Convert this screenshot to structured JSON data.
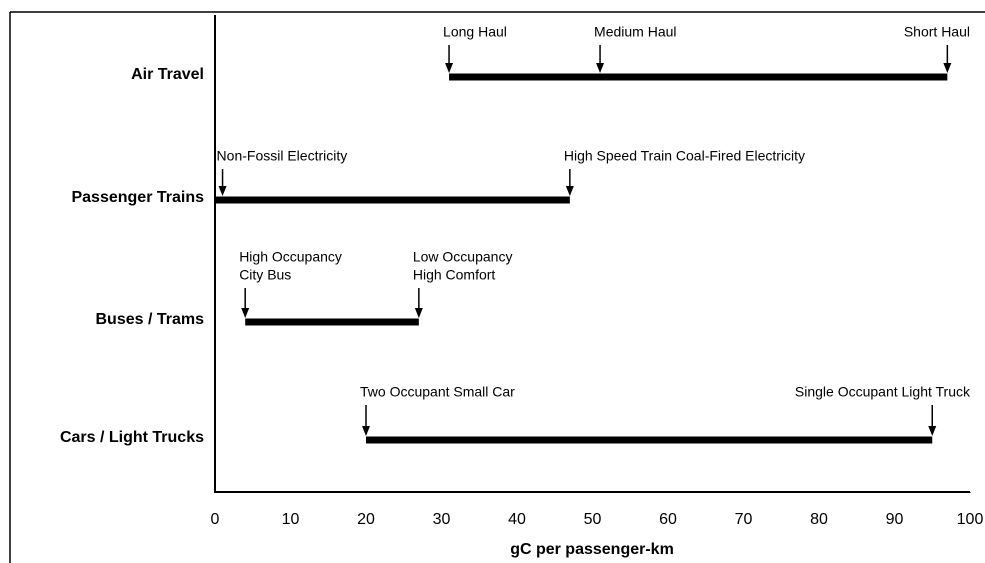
{
  "chart_data": {
    "type": "range",
    "xlabel": "gC per passenger-km",
    "xlim": [
      0,
      100
    ],
    "xticks": [
      0,
      10,
      20,
      30,
      40,
      50,
      60,
      70,
      80,
      90,
      100
    ],
    "color": "#000000",
    "rows": [
      {
        "name": "Air Travel",
        "low": 31,
        "high": 97,
        "annotations": [
          {
            "label": [
              "Long Haul"
            ],
            "value": 31
          },
          {
            "label": [
              "Medium Haul"
            ],
            "value": 51
          },
          {
            "label": [
              "Short Haul"
            ],
            "value": 97
          }
        ]
      },
      {
        "name": "Passenger Trains",
        "low": 0,
        "high": 47,
        "annotations": [
          {
            "label": [
              "Non-Fossil Electricity"
            ],
            "value": 1
          },
          {
            "label": [
              "High Speed Train Coal-Fired Electricity"
            ],
            "value": 47
          }
        ]
      },
      {
        "name": "Buses / Trams",
        "low": 4,
        "high": 27,
        "annotations": [
          {
            "label": [
              "High Occupancy",
              "City Bus"
            ],
            "value": 4
          },
          {
            "label": [
              "Low Occupancy",
              "High Comfort"
            ],
            "value": 27
          }
        ]
      },
      {
        "name": "Cars / Light Trucks",
        "low": 20,
        "high": 95,
        "annotations": [
          {
            "label": [
              "Two Occupant Small Car"
            ],
            "value": 20
          },
          {
            "label": [
              "Single Occupant Light Truck"
            ],
            "value": 95
          }
        ]
      }
    ]
  }
}
